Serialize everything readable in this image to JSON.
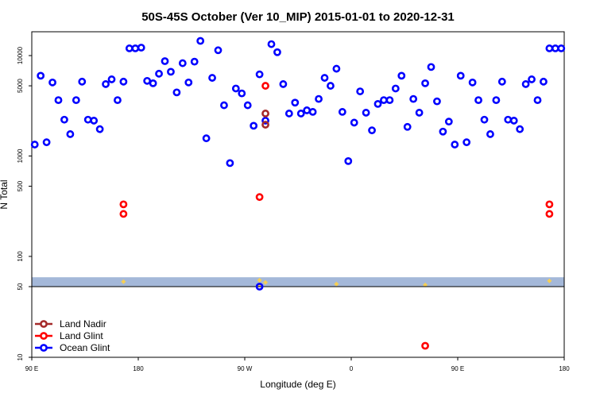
{
  "chart_data": {
    "type": "scatter",
    "title": "50S-45S October (Ver 10_MIP)   2015-01-01 to 2020-12-31",
    "xlabel": "Longitude (deg E)",
    "ylabel": "N Total",
    "x_ticks": [
      {
        "value": -90,
        "label": "90 E"
      },
      {
        "value": 0,
        "label": "180"
      },
      {
        "value": 90,
        "label": "90 W"
      },
      {
        "value": 180,
        "label": "0"
      },
      {
        "value": 270,
        "label": "90 E"
      },
      {
        "value": 360,
        "label": "180"
      }
    ],
    "y_ticks": [
      10,
      50,
      100,
      500,
      1000,
      5000,
      10000
    ],
    "y_scale": "log",
    "xlim": [
      -90,
      360
    ],
    "ylim": [
      10,
      20000
    ],
    "grid": false,
    "legend_position": "bottom-left",
    "colors": {
      "land_nadir": "#a52a2a",
      "land_glint": "#ff0000",
      "ocean_glint": "#0000ff",
      "ocean_band": "#a4b8d9",
      "land_marks": "#f5cf55"
    },
    "series": [
      {
        "name": "Land Nadir",
        "key": "land_nadir",
        "points": [
          [
            107.5,
            2650
          ],
          [
            107.5,
            2050
          ]
        ]
      },
      {
        "name": "Land Glint",
        "key": "land_glint",
        "points": [
          [
            -12.5,
            265
          ],
          [
            -12.5,
            330
          ],
          [
            102.5,
            390
          ],
          [
            107.5,
            5000
          ],
          [
            242.5,
            13
          ],
          [
            347.5,
            265
          ],
          [
            347.5,
            330
          ]
        ]
      },
      {
        "name": "Ocean Glint",
        "key": "ocean_glint",
        "points": [
          [
            -87.5,
            1300
          ],
          [
            -82.5,
            6300
          ],
          [
            -77.5,
            1370
          ],
          [
            -72.5,
            5400
          ],
          [
            -67.5,
            3600
          ],
          [
            -62.5,
            2300
          ],
          [
            -57.5,
            1650
          ],
          [
            -52.5,
            3600
          ],
          [
            -47.5,
            5500
          ],
          [
            -42.5,
            2300
          ],
          [
            -37.5,
            2250
          ],
          [
            -32.5,
            1850
          ],
          [
            -27.5,
            5200
          ],
          [
            -22.5,
            5800
          ],
          [
            -17.5,
            3600
          ],
          [
            -12.5,
            5500
          ],
          [
            -7.5,
            11800
          ],
          [
            -2.5,
            11800
          ],
          [
            2.5,
            12000
          ],
          [
            7.5,
            5600
          ],
          [
            12.5,
            5300
          ],
          [
            17.5,
            6600
          ],
          [
            22.5,
            8800
          ],
          [
            27.5,
            6900
          ],
          [
            32.5,
            4300
          ],
          [
            37.5,
            8400
          ],
          [
            42.5,
            5400
          ],
          [
            47.5,
            8700
          ],
          [
            52.5,
            14000
          ],
          [
            57.5,
            1500
          ],
          [
            62.5,
            6000
          ],
          [
            67.5,
            11300
          ],
          [
            72.5,
            3200
          ],
          [
            77.5,
            850
          ],
          [
            82.5,
            4700
          ],
          [
            87.5,
            4200
          ],
          [
            92.5,
            3200
          ],
          [
            97.5,
            2000
          ],
          [
            102.5,
            6500
          ],
          [
            102.5,
            50
          ],
          [
            107.5,
            2250
          ],
          [
            112.5,
            13000
          ],
          [
            117.5,
            10800
          ],
          [
            122.5,
            5200
          ],
          [
            127.5,
            2650
          ],
          [
            132.5,
            3400
          ],
          [
            137.5,
            2650
          ],
          [
            142.5,
            2850
          ],
          [
            147.5,
            2750
          ],
          [
            152.5,
            3700
          ],
          [
            157.5,
            6000
          ],
          [
            162.5,
            5000
          ],
          [
            167.5,
            7400
          ],
          [
            172.5,
            2750
          ],
          [
            177.5,
            890
          ],
          [
            182.5,
            2150
          ],
          [
            187.5,
            4400
          ],
          [
            192.5,
            2700
          ],
          [
            197.5,
            1800
          ],
          [
            202.5,
            3300
          ],
          [
            207.5,
            3600
          ],
          [
            212.5,
            3600
          ],
          [
            217.5,
            4700
          ],
          [
            222.5,
            6300
          ],
          [
            227.5,
            1950
          ],
          [
            232.5,
            3700
          ],
          [
            237.5,
            2700
          ],
          [
            242.5,
            5300
          ],
          [
            247.5,
            7700
          ],
          [
            252.5,
            3500
          ],
          [
            257.5,
            1750
          ],
          [
            262.5,
            2200
          ],
          [
            267.5,
            1300
          ],
          [
            272.5,
            6300
          ],
          [
            277.5,
            1370
          ],
          [
            282.5,
            5400
          ],
          [
            287.5,
            3600
          ],
          [
            292.5,
            2300
          ],
          [
            297.5,
            1650
          ],
          [
            302.5,
            3600
          ],
          [
            307.5,
            5500
          ],
          [
            312.5,
            2300
          ],
          [
            317.5,
            2250
          ],
          [
            322.5,
            1850
          ],
          [
            327.5,
            5200
          ],
          [
            332.5,
            5800
          ],
          [
            337.5,
            3600
          ],
          [
            342.5,
            5500
          ],
          [
            347.5,
            11800
          ],
          [
            352.5,
            11800
          ],
          [
            357.5,
            11800
          ]
        ]
      }
    ],
    "ocean_band": [
      50,
      62
    ],
    "land_marks": [
      [
        -12.5,
        56
      ],
      [
        102.5,
        58
      ],
      [
        107.5,
        55
      ],
      [
        102.5,
        52
      ],
      [
        242.5,
        52
      ],
      [
        167.5,
        53
      ],
      [
        347.5,
        57
      ]
    ]
  }
}
